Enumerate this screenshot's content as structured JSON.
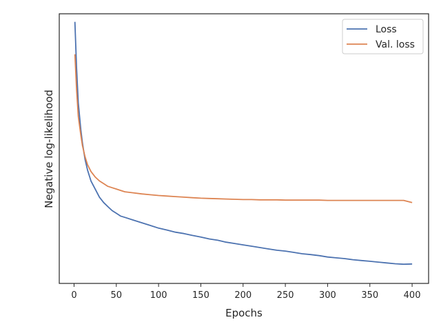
{
  "chart_data": {
    "type": "line",
    "title": "",
    "xlabel": "Epochs",
    "ylabel": "Negative log-likelihood",
    "xlim": [
      -17.5,
      419.5
    ],
    "ylim": [
      0,
      1
    ],
    "y_ticks_labeled": false,
    "x_ticks": [
      0,
      50,
      100,
      150,
      200,
      250,
      300,
      350,
      400
    ],
    "x_tick_labels": [
      "0",
      "50",
      "100",
      "150",
      "200",
      "250",
      "300",
      "350",
      "400"
    ],
    "grid": false,
    "legend_position": "top-right",
    "series": [
      {
        "name": "Loss",
        "color": "#4c72b0",
        "x": [
          1,
          3,
          5,
          8,
          10,
          13,
          16,
          20,
          25,
          30,
          35,
          40,
          45,
          50,
          55,
          60,
          70,
          80,
          90,
          100,
          110,
          120,
          130,
          140,
          150,
          160,
          170,
          180,
          190,
          200,
          210,
          220,
          230,
          240,
          250,
          260,
          270,
          280,
          290,
          300,
          310,
          320,
          330,
          340,
          350,
          360,
          370,
          380,
          390,
          400
        ],
        "y": [
          0.97,
          0.8,
          0.67,
          0.57,
          0.52,
          0.46,
          0.42,
          0.38,
          0.35,
          0.32,
          0.3,
          0.285,
          0.27,
          0.26,
          0.25,
          0.245,
          0.235,
          0.225,
          0.215,
          0.205,
          0.198,
          0.19,
          0.185,
          0.178,
          0.172,
          0.165,
          0.16,
          0.153,
          0.148,
          0.143,
          0.138,
          0.133,
          0.128,
          0.123,
          0.12,
          0.115,
          0.11,
          0.107,
          0.103,
          0.098,
          0.095,
          0.092,
          0.088,
          0.085,
          0.082,
          0.079,
          0.076,
          0.073,
          0.071,
          0.072
        ]
      },
      {
        "name": "Val. loss",
        "color": "#dd8452",
        "x": [
          1,
          3,
          5,
          8,
          10,
          13,
          16,
          20,
          25,
          30,
          35,
          40,
          45,
          50,
          55,
          60,
          70,
          80,
          90,
          100,
          110,
          120,
          130,
          140,
          150,
          160,
          170,
          180,
          190,
          200,
          210,
          220,
          230,
          240,
          250,
          260,
          270,
          280,
          290,
          300,
          310,
          320,
          330,
          340,
          350,
          360,
          370,
          380,
          390,
          400
        ],
        "y": [
          0.85,
          0.72,
          0.62,
          0.55,
          0.51,
          0.47,
          0.44,
          0.415,
          0.395,
          0.38,
          0.37,
          0.36,
          0.355,
          0.35,
          0.345,
          0.34,
          0.336,
          0.332,
          0.329,
          0.326,
          0.324,
          0.322,
          0.32,
          0.318,
          0.316,
          0.315,
          0.314,
          0.313,
          0.312,
          0.311,
          0.311,
          0.31,
          0.31,
          0.31,
          0.309,
          0.309,
          0.309,
          0.309,
          0.309,
          0.308,
          0.308,
          0.308,
          0.308,
          0.308,
          0.308,
          0.308,
          0.308,
          0.308,
          0.308,
          0.3
        ]
      }
    ]
  }
}
